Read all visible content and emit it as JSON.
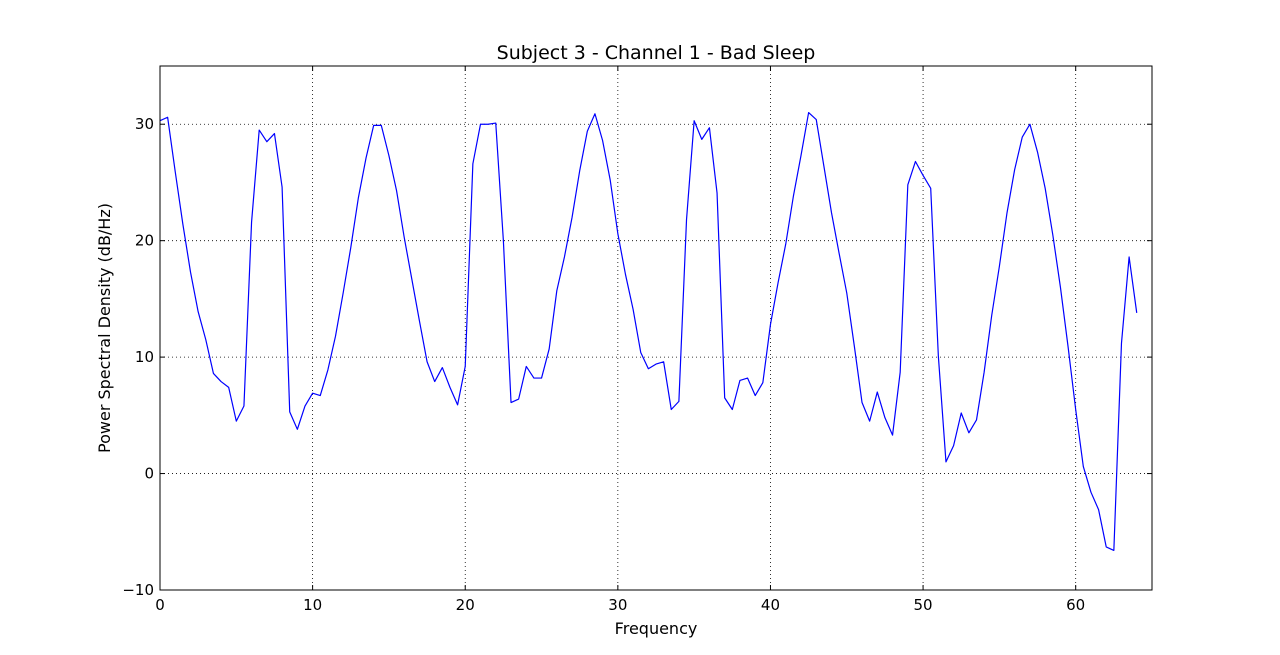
{
  "chart_data": {
    "type": "line",
    "title": "Subject 3 - Channel 1 - Bad Sleep",
    "xlabel": "Frequency",
    "ylabel": "Power Spectral Density (dB/Hz)",
    "xlim": [
      0,
      65
    ],
    "ylim": [
      -10,
      35
    ],
    "xticks": [
      0,
      10,
      20,
      30,
      40,
      50,
      60
    ],
    "xtick_labels": [
      "0",
      "10",
      "20",
      "30",
      "40",
      "50",
      "60"
    ],
    "yticks": [
      -10,
      0,
      10,
      20,
      30
    ],
    "ytick_labels": [
      "−10",
      "0",
      "10",
      "20",
      "30"
    ],
    "grid": true,
    "grid_style": "dotted",
    "series": [
      {
        "color": "#0000ff",
        "x": [
          0,
          0.5,
          1,
          1.5,
          2,
          2.5,
          3,
          3.5,
          4,
          4.5,
          5,
          5.5,
          6,
          6.5,
          7,
          7.5,
          8,
          8.5,
          9,
          9.5,
          10,
          10.5,
          11,
          11.5,
          12,
          12.5,
          13,
          13.5,
          14,
          14.5,
          15,
          15.5,
          16,
          16.5,
          17,
          17.5,
          18,
          18.5,
          19,
          19.5,
          20,
          20.5,
          21,
          21.5,
          22,
          22.5,
          23,
          23.5,
          24,
          24.5,
          25,
          25.5,
          26,
          26.5,
          27,
          27.5,
          28,
          28.5,
          29,
          29.5,
          30,
          30.5,
          31,
          31.5,
          32,
          32.5,
          33,
          33.5,
          34,
          34.5,
          35,
          35.5,
          36,
          36.5,
          37,
          37.5,
          38,
          38.5,
          39,
          39.5,
          40,
          40.5,
          41,
          41.5,
          42,
          42.5,
          43,
          43.5,
          44,
          44.5,
          45,
          45.5,
          46,
          46.5,
          47,
          47.5,
          48,
          48.5,
          49,
          49.5,
          50,
          50.5,
          51,
          51.5,
          52,
          52.5,
          53,
          53.5,
          54,
          54.5,
          55,
          55.5,
          56,
          56.5,
          57,
          57.5,
          58,
          58.5,
          59,
          59.5,
          60,
          60.5,
          61,
          61.5,
          62,
          62.5,
          63,
          63.5,
          64
        ],
        "y": [
          30.3,
          30.6,
          25.9,
          21.4,
          17.3,
          13.9,
          11.5,
          8.6,
          7.9,
          7.4,
          4.5,
          5.8,
          21.6,
          29.5,
          28.5,
          29.2,
          24.6,
          5.3,
          3.8,
          5.8,
          6.9,
          6.7,
          8.9,
          11.8,
          15.5,
          19.4,
          23.7,
          27.1,
          29.9,
          29.9,
          27.3,
          24.3,
          20.3,
          16.7,
          13.1,
          9.6,
          7.9,
          9.1,
          7.4,
          5.9,
          9.2,
          26.6,
          30.0,
          30.0,
          30.1,
          20.0,
          6.1,
          6.4,
          9.2,
          8.2,
          8.2,
          10.7,
          15.7,
          18.6,
          22.0,
          26.0,
          29.4,
          30.9,
          28.6,
          25.2,
          20.6,
          17.1,
          14.1,
          10.4,
          9.0,
          9.4,
          9.6,
          5.5,
          6.2,
          21.8,
          30.3,
          28.7,
          29.7,
          24.1,
          6.5,
          5.5,
          8.0,
          8.2,
          6.7,
          7.8,
          12.8,
          16.4,
          19.7,
          23.8,
          27.3,
          31.0,
          30.4,
          26.4,
          22.4,
          18.9,
          15.5,
          10.9,
          6.1,
          4.5,
          7.0,
          4.8,
          3.3,
          8.7,
          24.8,
          26.8,
          25.6,
          24.5,
          10.1,
          1.0,
          2.4,
          5.2,
          3.5,
          4.6,
          8.7,
          13.6,
          17.8,
          22.4,
          26.1,
          28.9,
          30.0,
          27.6,
          24.5,
          20.5,
          16.0,
          10.9,
          5.5,
          0.6,
          -1.6,
          -3.1,
          -6.3,
          -6.6,
          11.2,
          18.6,
          13.8
        ]
      }
    ]
  }
}
